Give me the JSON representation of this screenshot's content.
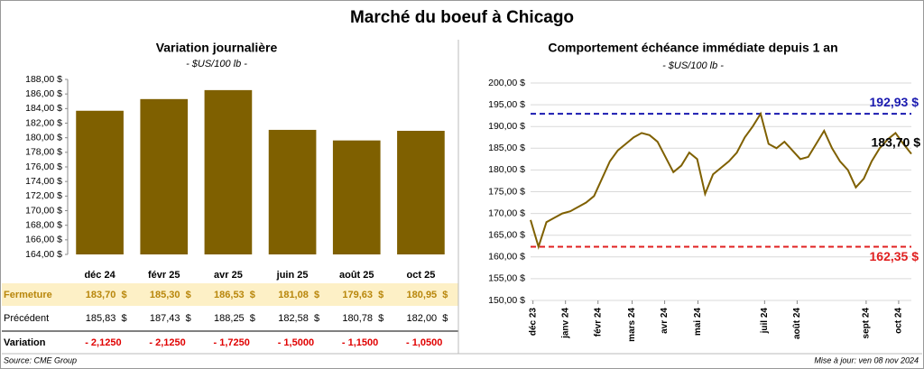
{
  "title": "Marché du boeuf à Chicago",
  "chart_data": [
    {
      "type": "bar",
      "title": "Variation journalière",
      "subtitle": "- $US/100 lb -",
      "categories": [
        "déc 24",
        "févr 25",
        "avr 25",
        "juin 25",
        "août 25",
        "oct 25"
      ],
      "values": [
        183.7,
        185.3,
        186.53,
        181.08,
        179.63,
        180.95
      ],
      "value_labels": [
        "183,70  $",
        "185,30  $",
        "186,53  $",
        "181,08  $",
        "179,63  $",
        "180,95  $"
      ],
      "color": "#7f6000",
      "ylim": [
        164,
        188
      ],
      "yticks": [
        {
          "value": 164,
          "label": "164,00 $"
        },
        {
          "value": 166,
          "label": "166,00 $"
        },
        {
          "value": 168,
          "label": "168,00 $"
        },
        {
          "value": 170,
          "label": "170,00 $"
        },
        {
          "value": 172,
          "label": "172,00 $"
        },
        {
          "value": 174,
          "label": "174,00 $"
        },
        {
          "value": 176,
          "label": "176,00 $"
        },
        {
          "value": 178,
          "label": "178,00 $"
        },
        {
          "value": 180,
          "label": "180,00 $"
        },
        {
          "value": 182,
          "label": "182,00 $"
        },
        {
          "value": 184,
          "label": "184,00 $"
        },
        {
          "value": 186,
          "label": "186,00 $"
        },
        {
          "value": 188,
          "label": "188,00 $"
        }
      ]
    },
    {
      "type": "line",
      "title": "Comportement  échéance immédiate depuis 1 an",
      "subtitle": "- $US/100 lb -",
      "color": "#7f6000",
      "values": [
        168.5,
        162.35,
        168,
        169,
        170,
        170.5,
        171.5,
        172.5,
        174,
        178,
        182,
        184.5,
        186,
        187.5,
        188.5,
        188,
        186.5,
        183,
        179.5,
        181,
        184,
        182.5,
        174.5,
        179,
        180.5,
        182,
        184,
        187.5,
        190,
        192.93,
        186,
        185,
        186.5,
        184.5,
        182.5,
        183,
        186,
        189,
        185,
        182,
        180,
        176,
        178,
        182,
        185,
        187,
        188.5,
        186,
        183.7
      ],
      "last_label": "183,70 $",
      "xlim": [
        0,
        48
      ],
      "xticks": [
        {
          "value": 0.3,
          "label": "déc 23"
        },
        {
          "value": 4.4,
          "label": "janv 24"
        },
        {
          "value": 8.5,
          "label": "févr 24"
        },
        {
          "value": 12.8,
          "label": "mars 24"
        },
        {
          "value": 16.9,
          "label": "avr 24"
        },
        {
          "value": 21.1,
          "label": "mai 24"
        },
        {
          "value": 29.5,
          "label": "juil 24"
        },
        {
          "value": 33.6,
          "label": "août 24"
        },
        {
          "value": 42.3,
          "label": "sept 24"
        },
        {
          "value": 46.4,
          "label": "oct 24"
        }
      ],
      "ylim": [
        150,
        200
      ],
      "yticks": [
        {
          "value": 150,
          "label": "150,00 $"
        },
        {
          "value": 155,
          "label": "155,00 $"
        },
        {
          "value": 160,
          "label": "160,00 $"
        },
        {
          "value": 165,
          "label": "165,00 $"
        },
        {
          "value": 170,
          "label": "170,00 $"
        },
        {
          "value": 175,
          "label": "175,00 $"
        },
        {
          "value": 180,
          "label": "180,00 $"
        },
        {
          "value": 185,
          "label": "185,00 $"
        },
        {
          "value": 190,
          "label": "190,00 $"
        },
        {
          "value": 195,
          "label": "195,00 $"
        },
        {
          "value": 200,
          "label": "200,00 $"
        }
      ],
      "hlines": [
        {
          "value": 192.93,
          "label": "192,93 $",
          "color": "#1a1ab0"
        },
        {
          "value": 162.35,
          "label": "162,35 $",
          "color": "#e02020"
        }
      ]
    }
  ],
  "table": {
    "row_labels": [
      "Fermeture",
      "Précédent",
      "Variation"
    ],
    "precedent": [
      "185,83  $",
      "187,43  $",
      "188,25  $",
      "182,58  $",
      "180,78  $",
      "182,00  $"
    ],
    "variation": [
      "- 2,1250",
      "- 2,1250",
      "- 1,7250",
      "- 1,5000",
      "- 1,1500",
      "- 1,0500"
    ]
  },
  "footer": {
    "source": "Source: CME Group",
    "updated": "Mise à jour: ven 08 nov 2024"
  }
}
